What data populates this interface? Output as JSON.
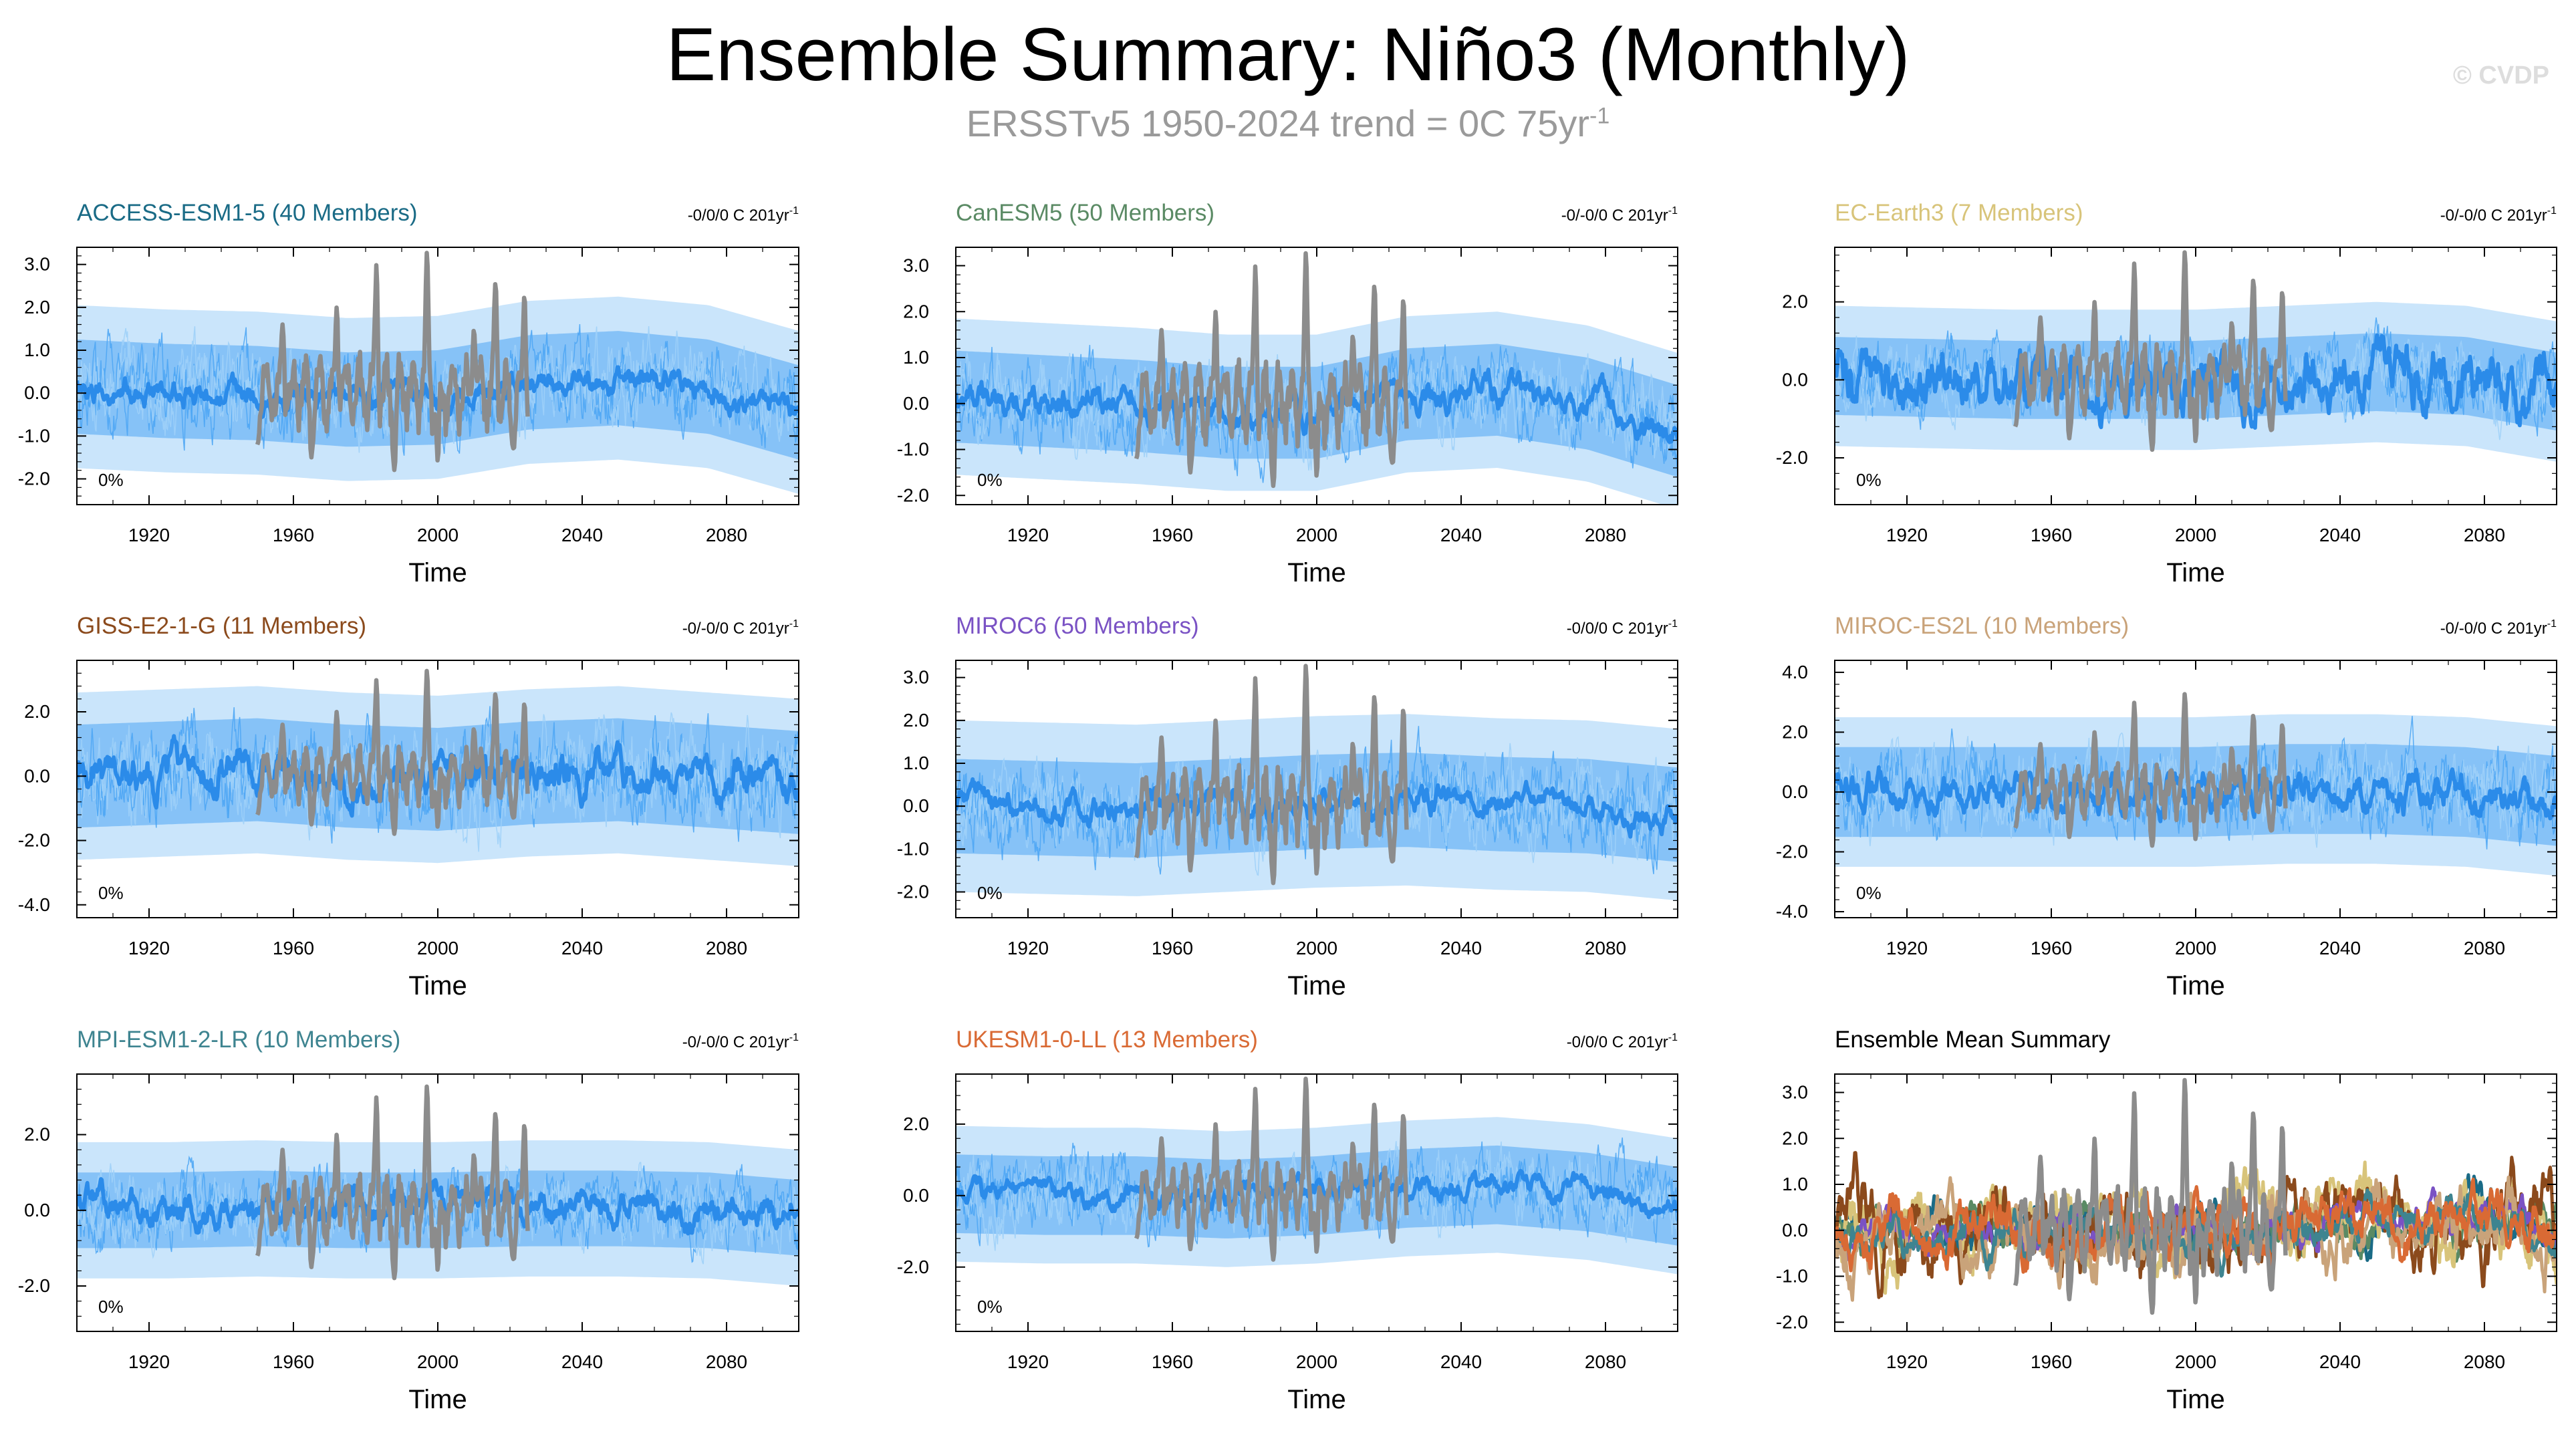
{
  "header": {
    "title": "Ensemble Summary: Niño3 (Monthly)",
    "subtitle_main": "ERSSTv5 1950-2024 trend = 0C 75yr",
    "subtitle_exp": "-1",
    "watermark": "© CVDP"
  },
  "colors": {
    "ensemble_light": "#9fd0f8",
    "ensemble_mid": "#4ea6f4",
    "ensemble_mean": "#2b8be9",
    "observations": "#8c8c8c"
  },
  "chart_data": [
    {
      "type": "line",
      "title": "ACCESS-ESM1-5 (40 Members)",
      "title_color": "#1a6b86",
      "trend_main": "-0/0/0 C 201yr",
      "trend_exp": "-1",
      "pct_label": "0%",
      "xlabel": "Time",
      "xlim": [
        1900,
        2100
      ],
      "ylim": [
        -2.6,
        3.4
      ],
      "yticks": [
        -2.0,
        -1.0,
        0.0,
        1.0,
        2.0,
        3.0
      ],
      "ytick_labels": [
        "-2.0",
        "-1.0",
        "0.0",
        "1.0",
        "2.0",
        "3.0"
      ],
      "xticks": [
        1920,
        1960,
        2000,
        2040,
        2080
      ],
      "xtick_labels": [
        "1920",
        "1960",
        "2000",
        "2040",
        "2080"
      ],
      "ens_mean_x": [
        1900,
        1925,
        1950,
        1975,
        2000,
        2025,
        2050,
        2075,
        2100
      ],
      "ens_mean_y": [
        0.15,
        0.05,
        0.0,
        -0.15,
        -0.1,
        0.25,
        0.35,
        0.15,
        -0.45
      ],
      "spread": 1.1,
      "spread_outer": 1.9,
      "amp": 0.3,
      "obs_x": [
        1950,
        1957,
        1965,
        1972,
        1983,
        1988,
        1997,
        2000,
        2010,
        2016,
        2021,
        2024
      ],
      "obs_y": [
        -1.2,
        1.6,
        -1.5,
        2.0,
        3.0,
        -1.8,
        3.3,
        -1.6,
        1.5,
        2.6,
        -1.3,
        2.3
      ],
      "series": [
        {
          "name": "ACCESS-ESM1-5"
        }
      ]
    },
    {
      "type": "line",
      "title": "CanESM5 (50 Members)",
      "title_color": "#5a8a64",
      "trend_main": "-0/-0/0 C 201yr",
      "trend_exp": "-1",
      "pct_label": "0%",
      "xlabel": "Time",
      "xlim": [
        1900,
        2100
      ],
      "ylim": [
        -2.2,
        3.4
      ],
      "yticks": [
        -2.0,
        -1.0,
        0.0,
        1.0,
        2.0,
        3.0
      ],
      "ytick_labels": [
        "-2.0",
        "-1.0",
        "0.0",
        "1.0",
        "2.0",
        "3.0"
      ],
      "xticks": [
        1920,
        1960,
        2000,
        2040,
        2080
      ],
      "xtick_labels": [
        "1920",
        "1960",
        "2000",
        "2040",
        "2080"
      ],
      "ens_mean_x": [
        1900,
        1925,
        1950,
        1975,
        2000,
        2025,
        2050,
        2075,
        2100
      ],
      "ens_mean_y": [
        0.15,
        0.05,
        -0.05,
        -0.2,
        -0.2,
        0.2,
        0.3,
        0.0,
        -0.6
      ],
      "spread": 1.0,
      "spread_outer": 1.7,
      "amp": 0.3,
      "obs_x": [
        1950,
        1957,
        1965,
        1972,
        1983,
        1988,
        1997,
        2000,
        2010,
        2016,
        2021,
        2024
      ],
      "obs_y": [
        -1.2,
        1.6,
        -1.5,
        2.0,
        3.0,
        -1.8,
        3.3,
        -1.6,
        1.5,
        2.6,
        -1.3,
        2.3
      ],
      "series": [
        {
          "name": "CanESM5"
        }
      ]
    },
    {
      "type": "line",
      "title": "EC-Earth3 (7 Members)",
      "title_color": "#d8c47a",
      "trend_main": "-0/-0/0 C 201yr",
      "trend_exp": "-1",
      "pct_label": "0%",
      "xlabel": "Time",
      "xlim": [
        1900,
        2100
      ],
      "ylim": [
        -3.2,
        3.4
      ],
      "yticks": [
        -2.0,
        0.0,
        2.0
      ],
      "ytick_labels": [
        "-2.0",
        "0.0",
        "2.0"
      ],
      "xticks": [
        1920,
        1960,
        2000,
        2040,
        2080
      ],
      "xtick_labels": [
        "1920",
        "1960",
        "2000",
        "2040",
        "2080"
      ],
      "ens_mean_x": [
        1900,
        1925,
        1950,
        1975,
        2000,
        2025,
        2050,
        2075,
        2100
      ],
      "ens_mean_y": [
        0.1,
        0.05,
        0.0,
        0.0,
        0.0,
        0.1,
        0.2,
        0.1,
        -0.3
      ],
      "spread": 1.0,
      "spread_outer": 1.8,
      "amp": 0.7,
      "obs_x": [
        1950,
        1957,
        1965,
        1972,
        1983,
        1988,
        1997,
        2000,
        2010,
        2016,
        2021,
        2024
      ],
      "obs_y": [
        -1.2,
        1.6,
        -1.5,
        2.0,
        3.0,
        -1.8,
        3.3,
        -1.6,
        1.5,
        2.6,
        -1.3,
        2.3
      ],
      "series": [
        {
          "name": "EC-Earth3"
        }
      ]
    },
    {
      "type": "line",
      "title": "GISS-E2-1-G (11 Members)",
      "title_color": "#8b4a1c",
      "trend_main": "-0/-0/0 C 201yr",
      "trend_exp": "-1",
      "pct_label": "0%",
      "xlabel": "Time",
      "xlim": [
        1900,
        2100
      ],
      "ylim": [
        -4.4,
        3.6
      ],
      "yticks": [
        -4.0,
        -2.0,
        0.0,
        2.0
      ],
      "ytick_labels": [
        "-4.0",
        "-2.0",
        "0.0",
        "2.0"
      ],
      "xticks": [
        1920,
        1960,
        2000,
        2040,
        2080
      ],
      "xtick_labels": [
        "1920",
        "1960",
        "2000",
        "2040",
        "2080"
      ],
      "ens_mean_x": [
        1900,
        1925,
        1950,
        1975,
        2000,
        2025,
        2050,
        2075,
        2100
      ],
      "ens_mean_y": [
        0.0,
        0.1,
        0.2,
        0.0,
        -0.1,
        0.1,
        0.2,
        0.0,
        -0.2
      ],
      "spread": 1.6,
      "spread_outer": 2.6,
      "amp": 0.6,
      "obs_x": [
        1950,
        1957,
        1965,
        1972,
        1983,
        1988,
        1997,
        2000,
        2010,
        2016,
        2021,
        2024
      ],
      "obs_y": [
        -1.2,
        1.6,
        -1.5,
        2.0,
        3.0,
        -1.8,
        3.3,
        -1.6,
        1.5,
        2.6,
        -1.3,
        2.3
      ],
      "series": [
        {
          "name": "GISS-E2-1-G"
        }
      ]
    },
    {
      "type": "line",
      "title": "MIROC6 (50 Members)",
      "title_color": "#7a52c4",
      "trend_main": "-0/0/0 C 201yr",
      "trend_exp": "-1",
      "pct_label": "0%",
      "xlabel": "Time",
      "xlim": [
        1900,
        2100
      ],
      "ylim": [
        -2.6,
        3.4
      ],
      "yticks": [
        -2.0,
        -1.0,
        0.0,
        1.0,
        2.0,
        3.0
      ],
      "ytick_labels": [
        "-2.0",
        "-1.0",
        "0.0",
        "1.0",
        "2.0",
        "3.0"
      ],
      "xticks": [
        1920,
        1960,
        2000,
        2040,
        2080
      ],
      "xtick_labels": [
        "1920",
        "1960",
        "2000",
        "2040",
        "2080"
      ],
      "ens_mean_x": [
        1900,
        1925,
        1950,
        1975,
        2000,
        2025,
        2050,
        2075,
        2100
      ],
      "ens_mean_y": [
        0.0,
        -0.05,
        -0.1,
        0.0,
        0.1,
        0.15,
        0.05,
        0.0,
        -0.2
      ],
      "spread": 1.1,
      "spread_outer": 2.0,
      "amp": 0.3,
      "obs_x": [
        1950,
        1957,
        1965,
        1972,
        1983,
        1988,
        1997,
        2000,
        2010,
        2016,
        2021,
        2024
      ],
      "obs_y": [
        -1.2,
        1.6,
        -1.5,
        2.0,
        3.0,
        -1.8,
        3.3,
        -1.6,
        1.5,
        2.6,
        -1.3,
        2.3
      ],
      "series": [
        {
          "name": "MIROC6"
        }
      ]
    },
    {
      "type": "line",
      "title": "MIROC-ES2L (10 Members)",
      "title_color": "#c9a37a",
      "trend_main": "-0/-0/0 C 201yr",
      "trend_exp": "-1",
      "pct_label": "0%",
      "xlabel": "Time",
      "xlim": [
        1900,
        2100
      ],
      "ylim": [
        -4.2,
        4.4
      ],
      "yticks": [
        -4.0,
        -2.0,
        0.0,
        2.0,
        4.0
      ],
      "ytick_labels": [
        "-4.0",
        "-2.0",
        "0.0",
        "2.0",
        "4.0"
      ],
      "xticks": [
        1920,
        1960,
        2000,
        2040,
        2080
      ],
      "xtick_labels": [
        "1920",
        "1960",
        "2000",
        "2040",
        "2080"
      ],
      "ens_mean_x": [
        1900,
        1925,
        1950,
        1975,
        2000,
        2025,
        2050,
        2075,
        2100
      ],
      "ens_mean_y": [
        0.0,
        0.0,
        0.0,
        0.0,
        0.0,
        0.1,
        0.1,
        0.0,
        -0.3
      ],
      "spread": 1.5,
      "spread_outer": 2.5,
      "amp": 0.6,
      "obs_x": [
        1950,
        1957,
        1965,
        1972,
        1983,
        1988,
        1997,
        2000,
        2010,
        2016,
        2021,
        2024
      ],
      "obs_y": [
        -1.2,
        1.6,
        -1.5,
        2.0,
        3.0,
        -1.8,
        3.3,
        -1.6,
        1.5,
        2.6,
        -1.3,
        2.3
      ],
      "series": [
        {
          "name": "MIROC-ES2L"
        }
      ]
    },
    {
      "type": "line",
      "title": "MPI-ESM1-2-LR (10 Members)",
      "title_color": "#3e8490",
      "trend_main": "-0/-0/0 C 201yr",
      "trend_exp": "-1",
      "pct_label": "0%",
      "xlabel": "Time",
      "xlim": [
        1900,
        2100
      ],
      "ylim": [
        -3.2,
        3.6
      ],
      "yticks": [
        -2.0,
        0.0,
        2.0
      ],
      "ytick_labels": [
        "-2.0",
        "0.0",
        "2.0"
      ],
      "xticks": [
        1920,
        1960,
        2000,
        2040,
        2080
      ],
      "xtick_labels": [
        "1920",
        "1960",
        "2000",
        "2040",
        "2080"
      ],
      "ens_mean_x": [
        1900,
        1925,
        1950,
        1975,
        2000,
        2025,
        2050,
        2075,
        2100
      ],
      "ens_mean_y": [
        0.0,
        0.0,
        0.05,
        0.0,
        0.0,
        0.05,
        0.05,
        0.0,
        -0.2
      ],
      "spread": 1.0,
      "spread_outer": 1.8,
      "amp": 0.4,
      "obs_x": [
        1950,
        1957,
        1965,
        1972,
        1983,
        1988,
        1997,
        2000,
        2010,
        2016,
        2021,
        2024
      ],
      "obs_y": [
        -1.2,
        1.6,
        -1.5,
        2.0,
        3.0,
        -1.8,
        3.3,
        -1.6,
        1.5,
        2.6,
        -1.3,
        2.3
      ],
      "series": [
        {
          "name": "MPI-ESM1-2-LR"
        }
      ]
    },
    {
      "type": "line",
      "title": "UKESM1-0-LL (13 Members)",
      "title_color": "#d96a34",
      "trend_main": "-0/0/0 C 201yr",
      "trend_exp": "-1",
      "pct_label": "0%",
      "xlabel": "Time",
      "xlim": [
        1900,
        2100
      ],
      "ylim": [
        -3.8,
        3.4
      ],
      "yticks": [
        -2.0,
        0.0,
        2.0
      ],
      "ytick_labels": [
        "-2.0",
        "0.0",
        "2.0"
      ],
      "xticks": [
        1920,
        1960,
        2000,
        2040,
        2080
      ],
      "xtick_labels": [
        "1920",
        "1960",
        "2000",
        "2040",
        "2080"
      ],
      "ens_mean_x": [
        1900,
        1925,
        1950,
        1975,
        2000,
        2025,
        2050,
        2075,
        2100
      ],
      "ens_mean_y": [
        0.05,
        0.0,
        0.0,
        -0.1,
        0.0,
        0.2,
        0.3,
        0.1,
        -0.3
      ],
      "spread": 1.1,
      "spread_outer": 1.9,
      "amp": 0.3,
      "obs_x": [
        1950,
        1957,
        1965,
        1972,
        1983,
        1988,
        1997,
        2000,
        2010,
        2016,
        2021,
        2024
      ],
      "obs_y": [
        -1.2,
        1.6,
        -1.5,
        2.0,
        3.0,
        -1.8,
        3.3,
        -1.6,
        1.5,
        2.6,
        -1.3,
        2.3
      ],
      "series": [
        {
          "name": "UKESM1-0-LL"
        }
      ]
    },
    {
      "type": "line",
      "title": "Ensemble Mean Summary",
      "title_color": "#000000",
      "xlabel": "Time",
      "xlim": [
        1900,
        2100
      ],
      "ylim": [
        -2.2,
        3.4
      ],
      "yticks": [
        -2.0,
        -1.0,
        0.0,
        1.0,
        2.0,
        3.0
      ],
      "ytick_labels": [
        "-2.0",
        "-1.0",
        "0.0",
        "1.0",
        "2.0",
        "3.0"
      ],
      "xticks": [
        1920,
        1960,
        2000,
        2040,
        2080
      ],
      "xtick_labels": [
        "1920",
        "1960",
        "2000",
        "2040",
        "2080"
      ],
      "obs_x": [
        1950,
        1957,
        1965,
        1972,
        1983,
        1988,
        1997,
        2000,
        2010,
        2016,
        2021,
        2024
      ],
      "obs_y": [
        -1.2,
        1.6,
        -1.5,
        2.0,
        3.0,
        -1.8,
        3.3,
        -1.6,
        1.5,
        2.6,
        -1.3,
        2.3
      ],
      "series": [
        {
          "name": "ACCESS-ESM1-5",
          "color": "#1a6b86",
          "amp": 0.45
        },
        {
          "name": "CanESM5",
          "color": "#5a8a64",
          "amp": 0.45
        },
        {
          "name": "EC-Earth3",
          "color": "#d8c47a",
          "amp": 0.7
        },
        {
          "name": "GISS-E2-1-G",
          "color": "#8b4a1c",
          "amp": 0.8
        },
        {
          "name": "MIROC6",
          "color": "#7a52c4",
          "amp": 0.35
        },
        {
          "name": "MIROC-ES2L",
          "color": "#c9a37a",
          "amp": 0.7
        },
        {
          "name": "MPI-ESM1-2-LR",
          "color": "#3e8490",
          "amp": 0.4
        },
        {
          "name": "UKESM1-0-LL",
          "color": "#d96a34",
          "amp": 0.55
        }
      ]
    }
  ]
}
